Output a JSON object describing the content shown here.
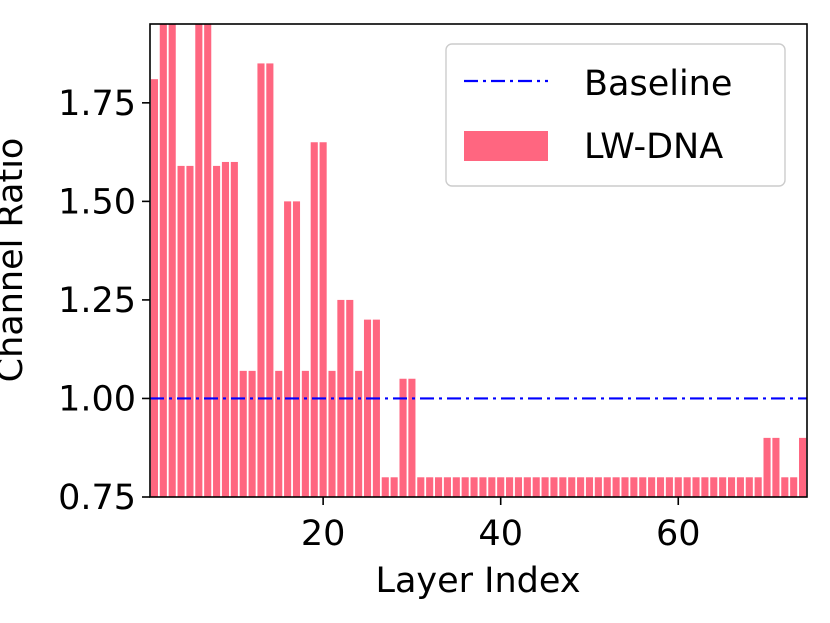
{
  "chart_data": {
    "type": "bar",
    "title": "",
    "xlabel": "Layer Index",
    "ylabel": "Channel Ratio",
    "xlim": [
      0.5,
      74.5
    ],
    "ylim": [
      0.75,
      1.95
    ],
    "xticks": [
      20,
      40,
      60
    ],
    "xtick_labels": [
      "20",
      "40",
      "60"
    ],
    "yticks": [
      0.75,
      1.0,
      1.25,
      1.5,
      1.75
    ],
    "ytick_labels": [
      "0.75",
      "1.00",
      "1.25",
      "1.50",
      "1.75"
    ],
    "grid": false,
    "legend": {
      "position": "top-right",
      "entries": [
        "Baseline",
        "LW-DNA"
      ]
    },
    "series": [
      {
        "name": "LW-DNA",
        "kind": "bar",
        "color": "#ff6680",
        "x": [
          1,
          2,
          3,
          4,
          5,
          6,
          7,
          8,
          9,
          10,
          11,
          12,
          13,
          14,
          15,
          16,
          17,
          18,
          19,
          20,
          21,
          22,
          23,
          24,
          25,
          26,
          27,
          28,
          29,
          30,
          31,
          32,
          33,
          34,
          35,
          36,
          37,
          38,
          39,
          40,
          41,
          42,
          43,
          44,
          45,
          46,
          47,
          48,
          49,
          50,
          51,
          52,
          53,
          54,
          55,
          56,
          57,
          58,
          59,
          60,
          61,
          62,
          63,
          64,
          65,
          66,
          67,
          68,
          69,
          70,
          71,
          72,
          73,
          74
        ],
        "values": [
          1.81,
          1.95,
          1.95,
          1.59,
          1.59,
          1.95,
          1.95,
          1.59,
          1.6,
          1.6,
          1.07,
          1.07,
          1.85,
          1.85,
          1.07,
          1.5,
          1.5,
          1.07,
          1.65,
          1.65,
          1.07,
          1.25,
          1.25,
          1.07,
          1.2,
          1.2,
          0.8,
          0.8,
          1.05,
          1.05,
          0.8,
          0.8,
          0.8,
          0.8,
          0.8,
          0.8,
          0.8,
          0.8,
          0.8,
          0.8,
          0.8,
          0.8,
          0.8,
          0.8,
          0.8,
          0.8,
          0.8,
          0.8,
          0.8,
          0.8,
          0.8,
          0.8,
          0.8,
          0.8,
          0.8,
          0.8,
          0.8,
          0.8,
          0.8,
          0.8,
          0.8,
          0.8,
          0.8,
          0.8,
          0.8,
          0.8,
          0.8,
          0.8,
          0.8,
          0.9,
          0.9,
          0.8,
          0.8,
          0.9
        ]
      },
      {
        "name": "Baseline",
        "kind": "line",
        "style": "dash-dot",
        "color": "#0000ff",
        "y": 1.0
      }
    ]
  }
}
